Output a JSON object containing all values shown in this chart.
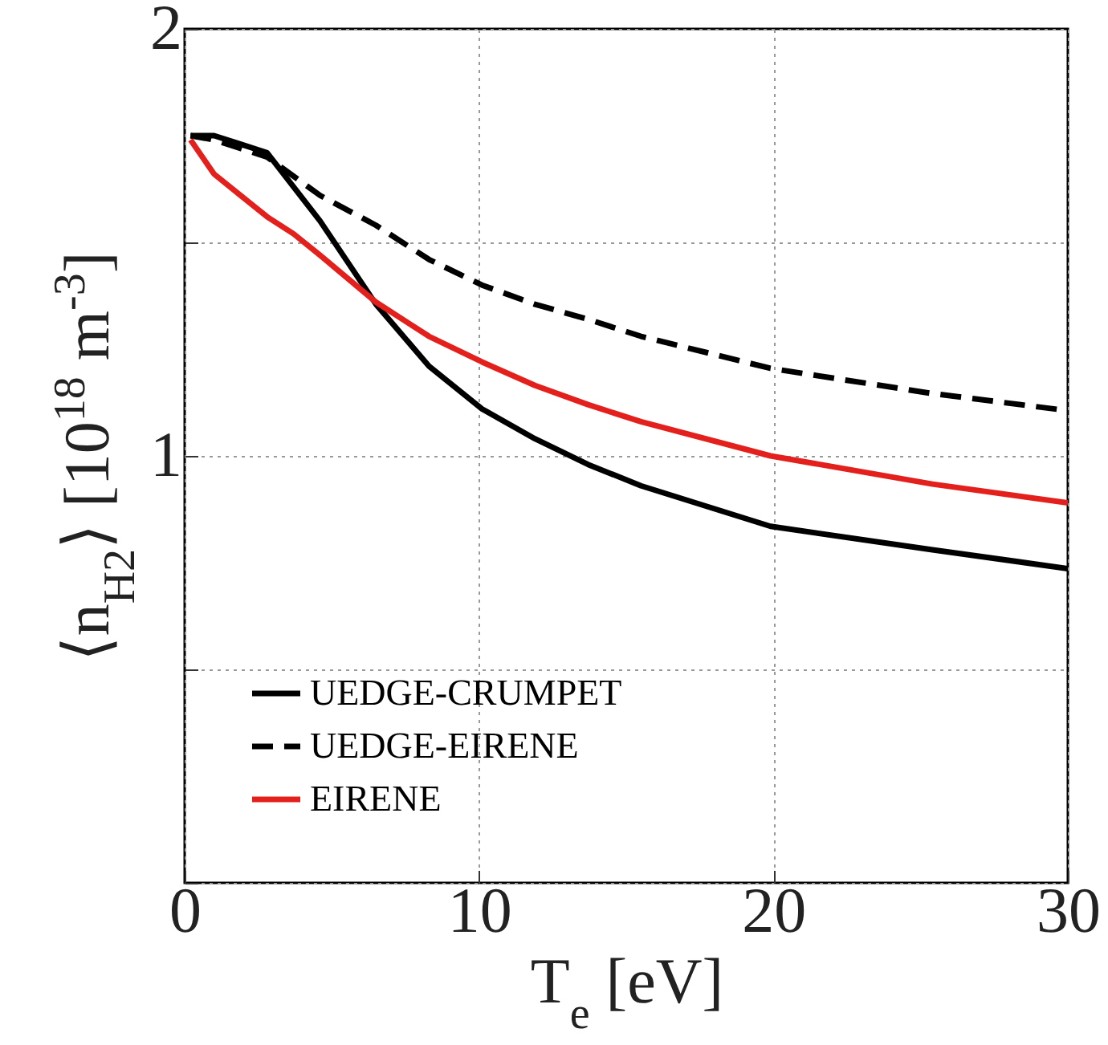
{
  "chart_data": {
    "type": "line",
    "xlabel": "T$_{e}$ [eV]",
    "ylabel": "⟨n$_{H2}$⟩ [10$^{18}$ m$^{-3}$]",
    "xlim": [
      0,
      30
    ],
    "xticks": [
      0,
      10,
      20,
      30
    ],
    "ylim": [
      0,
      2
    ],
    "yticks": [
      {
        "value": 0,
        "label": null
      },
      {
        "value": 0.5,
        "label": null
      },
      1,
      {
        "value": 1.5,
        "label": null
      },
      2
    ],
    "grid": true,
    "legend": "bottom left",
    "series": [
      {
        "name": "UEDGE-CRUMPET",
        "color": "#000000",
        "line_style": "solid",
        "x": [
          0.2,
          1.0,
          1.9,
          2.8,
          4.6,
          6.5,
          8.3,
          10.1,
          11.9,
          13.7,
          15.5,
          19.9,
          25.4,
          30
        ],
        "values": [
          1.75,
          1.75,
          1.73,
          1.71,
          1.55,
          1.355,
          1.21,
          1.11,
          1.04,
          0.98,
          0.93,
          0.835,
          0.78,
          0.736
        ]
      },
      {
        "name": "UEDGE-EIRENE",
        "color": "#000000",
        "line_style": "dashed",
        "x": [
          0.2,
          1.0,
          1.9,
          2.8,
          4.6,
          6.5,
          8.3,
          10.1,
          11.9,
          13.7,
          15.5,
          19.9,
          25.4,
          30
        ],
        "values": [
          1.75,
          1.74,
          1.72,
          1.7,
          1.61,
          1.54,
          1.46,
          1.4,
          1.355,
          1.32,
          1.28,
          1.205,
          1.146,
          1.106
        ]
      },
      {
        "name": "EIRENE",
        "color": "#e3201b",
        "line_style": "solid",
        "x": [
          0.2,
          1.0,
          1.9,
          2.8,
          3.7,
          4.6,
          6.5,
          8.3,
          10.1,
          11.9,
          13.7,
          15.5,
          19.9,
          25.4,
          30
        ],
        "values": [
          1.74,
          1.66,
          1.61,
          1.56,
          1.52,
          1.47,
          1.36,
          1.28,
          1.22,
          1.165,
          1.12,
          1.08,
          1.0,
          0.934,
          0.89
        ]
      }
    ]
  }
}
